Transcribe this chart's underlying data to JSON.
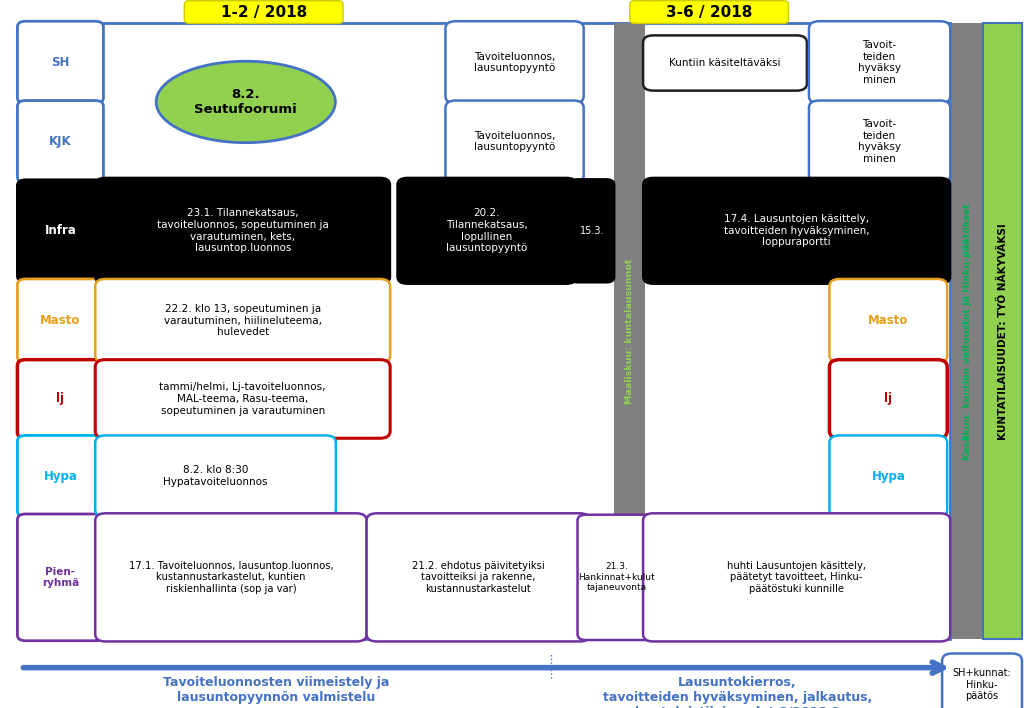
{
  "fig_width": 10.24,
  "fig_height": 7.08,
  "bg_color": "#ffffff",
  "title1": "1-2 / 2018",
  "title2": "3-6 / 2018",
  "row_labels": [
    "SH",
    "KJK",
    "Infra",
    "Masto",
    "lj",
    "Hypa",
    "Pien-\nryhmä"
  ],
  "row_colors": [
    "#4472c4",
    "#4472c4",
    "#000000",
    "#e6a020",
    "#c00000",
    "#00b0f0",
    "#7030a0"
  ],
  "dashed_line_color": "#e6a020",
  "gray_bar_color": "#7f7f7f",
  "green_bar_color": "#92d050",
  "blue_color": "#4472c4",
  "right_gray_color": "#808080",
  "right_green_color": "#92d050"
}
